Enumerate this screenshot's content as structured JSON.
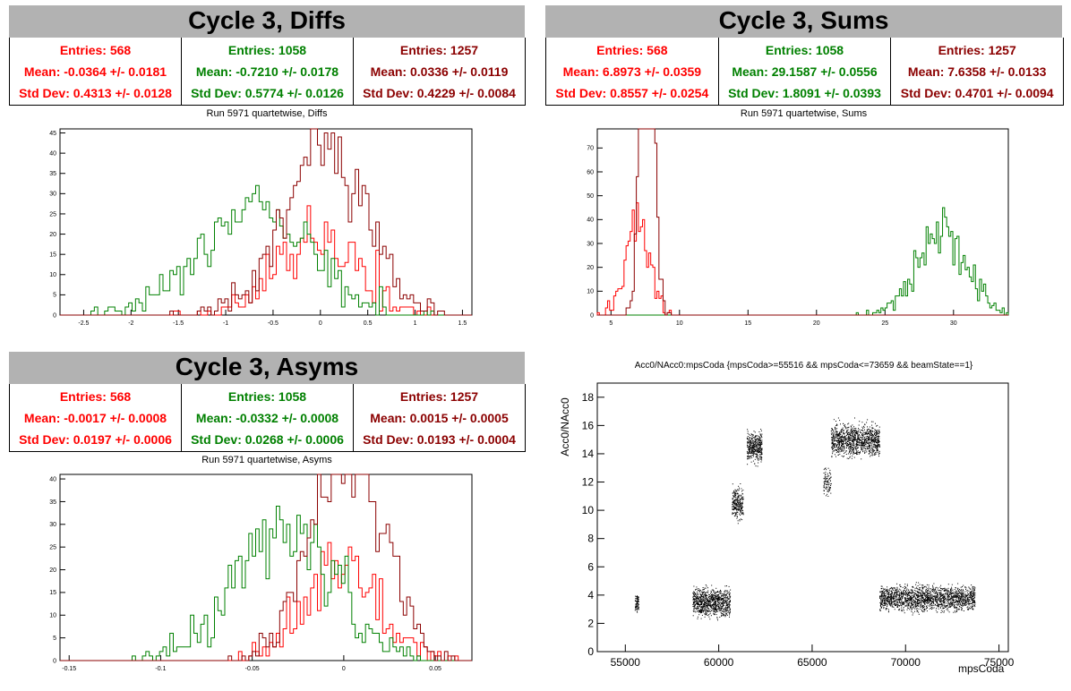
{
  "colors": {
    "red": "#ff0000",
    "green": "#008000",
    "dark": "#8b0000",
    "header": "#b2b2b2"
  },
  "panels": [
    {
      "title": "Cycle 3, Diffs",
      "subtitle": "Run 5971 quartetwise, Diffs",
      "stats": [
        {
          "entries": "Entries: 568",
          "mean": "Mean: -0.0364 +/- 0.0181",
          "std": "Std Dev: 0.4313 +/- 0.0128"
        },
        {
          "entries": "Entries: 1058",
          "mean": "Mean: -0.7210 +/- 0.0178",
          "std": "Std Dev: 0.5774 +/- 0.0126"
        },
        {
          "entries": "Entries: 1257",
          "mean": "Mean: 0.0336 +/- 0.0119",
          "std": "Std Dev: 0.4229 +/- 0.0084"
        }
      ]
    },
    {
      "title": "Cycle 3, Sums",
      "subtitle": "Run 5971 quartetwise, Sums",
      "stats": [
        {
          "entries": "Entries: 568",
          "mean": "Mean: 6.8973 +/- 0.0359",
          "std": "Std Dev: 0.8557 +/- 0.0254"
        },
        {
          "entries": "Entries: 1058",
          "mean": "Mean: 29.1587 +/- 0.0556",
          "std": "Std Dev: 1.8091 +/- 0.0393"
        },
        {
          "entries": "Entries: 1257",
          "mean": "Mean: 7.6358 +/- 0.0133",
          "std": "Std Dev: 0.4701 +/- 0.0094"
        }
      ]
    },
    {
      "title": "Cycle 3, Asyms",
      "subtitle": "Run 5971 quartetwise, Asyms",
      "stats": [
        {
          "entries": "Entries: 568",
          "mean": "Mean: -0.0017 +/- 0.0008",
          "std": "Std Dev: 0.0197 +/- 0.0006"
        },
        {
          "entries": "Entries: 1058",
          "mean": "Mean: -0.0332 +/- 0.0008",
          "std": "Std Dev: 0.0268 +/- 0.0006"
        },
        {
          "entries": "Entries: 1257",
          "mean": "Mean: 0.0015 +/- 0.0005",
          "std": "Std Dev: 0.0193 +/- 0.0004"
        }
      ]
    }
  ],
  "chart_data": [
    {
      "type": "histogram",
      "name": "diffs",
      "xlim": [
        -2.75,
        1.6
      ],
      "ylim": [
        0,
        46
      ],
      "xticks": [
        -2.5,
        -2,
        -1.5,
        -1,
        -0.5,
        0,
        0.5,
        1,
        1.5
      ],
      "xtick_labels": [
        "-2.5",
        "-2",
        "-1.5",
        "-1",
        "-0.5",
        "0",
        "0.5",
        "1",
        "1.5"
      ],
      "yticks": [
        0,
        5,
        10,
        15,
        20,
        25,
        30,
        35,
        40,
        45
      ],
      "series": [
        {
          "entries": 568,
          "mean": -0.0364,
          "std": 0.4313
        },
        {
          "entries": 1058,
          "mean": -0.721,
          "std": 0.5774
        },
        {
          "entries": 1257,
          "mean": 0.0336,
          "std": 0.4229
        }
      ],
      "bins": 120
    },
    {
      "type": "histogram",
      "name": "sums",
      "xlim": [
        4,
        34
      ],
      "ylim": [
        0,
        78
      ],
      "xticks": [
        5,
        10,
        15,
        20,
        25,
        30
      ],
      "xtick_labels": [
        "5",
        "10",
        "15",
        "20",
        "25",
        "30"
      ],
      "yticks": [
        0,
        10,
        20,
        30,
        40,
        50,
        60,
        70
      ],
      "series": [
        {
          "entries": 568,
          "mean": 6.8973,
          "std": 0.8557
        },
        {
          "entries": 1058,
          "mean": 29.1587,
          "std": 1.8091
        },
        {
          "entries": 1257,
          "mean": 7.6358,
          "std": 0.4701
        }
      ],
      "bins": 200
    },
    {
      "type": "histogram",
      "name": "asyms",
      "xlim": [
        -0.155,
        0.07
      ],
      "ylim": [
        0,
        41
      ],
      "xticks": [
        -0.15,
        -0.1,
        -0.05,
        0,
        0.05
      ],
      "xtick_labels": [
        "-0.15",
        "-0.1",
        "-0.05",
        "0",
        "0.05"
      ],
      "yticks": [
        0,
        5,
        10,
        15,
        20,
        25,
        30,
        35,
        40
      ],
      "series": [
        {
          "entries": 568,
          "mean": -0.0017,
          "std": 0.0197
        },
        {
          "entries": 1058,
          "mean": -0.0332,
          "std": 0.0268
        },
        {
          "entries": 1257,
          "mean": 0.0015,
          "std": 0.0193
        }
      ],
      "bins": 120
    },
    {
      "type": "scatter",
      "name": "acc0",
      "title": "Acc0/NAcc0:mpsCoda {mpsCoda>=55516 && mpsCoda<=73659 && beamState==1}",
      "xlabel": "mpsCoda",
      "ylabel": "Acc0/NAcc0",
      "xlim": [
        53500,
        75500
      ],
      "ylim": [
        0,
        19
      ],
      "xticks": [
        55000,
        60000,
        65000,
        70000,
        75000
      ],
      "xtick_labels": [
        "55000",
        "60000",
        "65000",
        "70000",
        "75000"
      ],
      "yticks": [
        0,
        2,
        4,
        6,
        8,
        10,
        12,
        14,
        16,
        18
      ],
      "ytick_labels": [
        "0",
        "2",
        "4",
        "6",
        "8",
        "10",
        "12",
        "14",
        "16",
        "18"
      ],
      "clusters": [
        {
          "x": [
            55500,
            55700
          ],
          "y": [
            3.5,
            0.5
          ],
          "n": 80
        },
        {
          "x": [
            58600,
            60600
          ],
          "y": [
            3.5,
            0.8
          ],
          "n": 900
        },
        {
          "x": [
            60700,
            61300
          ],
          "y": [
            10.5,
            0.9
          ],
          "n": 250
        },
        {
          "x": [
            61500,
            62300
          ],
          "y": [
            14.5,
            0.8
          ],
          "n": 400
        },
        {
          "x": [
            65600,
            66000
          ],
          "y": [
            12.0,
            0.8
          ],
          "n": 90
        },
        {
          "x": [
            66000,
            68600
          ],
          "y": [
            15.0,
            0.9
          ],
          "n": 1100
        },
        {
          "x": [
            68600,
            73700
          ],
          "y": [
            3.8,
            0.7
          ],
          "n": 1800
        }
      ]
    }
  ]
}
